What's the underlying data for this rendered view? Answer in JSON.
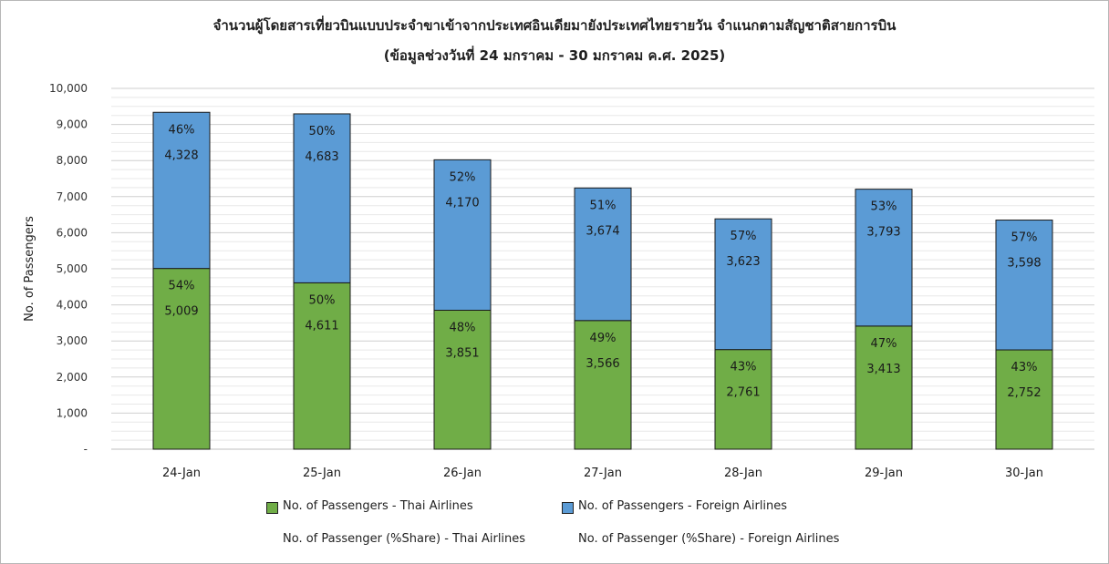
{
  "title_line1": "จำนวนผู้โดยสารเที่ยวบินแบบประจำขาเข้าจากประเทศอินเดียมายังประเทศไทยรายวัน  จำแนกตามสัญชาติสายการบิน",
  "title_line2": "(ข้อมูลช่วงวันที่ 24 มกราคม - 30 มกราคม ค.ศ. 2025)",
  "legend": {
    "thai": "No. of Passengers - Thai Airlines",
    "foreign": "No. of Passengers - Foreign Airlines",
    "thai_share": "No. of Passenger (%Share) - Thai Airlines",
    "foreign_share": "No. of Passenger (%Share) - Foreign Airlines"
  },
  "chart_data": {
    "type": "bar",
    "stacked": true,
    "title": "จำนวนผู้โดยสารเที่ยวบินแบบประจำขาเข้าจากประเทศอินเดียมายังประเทศไทยรายวัน  จำแนกตามสัญชาติสายการบิน",
    "subtitle": "(ข้อมูลช่วงวันที่ 24 มกราคม - 30 มกราคม ค.ศ. 2025)",
    "xlabel": "",
    "ylabel": "No. of Passengers",
    "ylim": [
      0,
      10000
    ],
    "yticks": [
      0,
      1000,
      2000,
      3000,
      4000,
      5000,
      6000,
      7000,
      8000,
      9000,
      10000
    ],
    "ytick_labels": [
      "-",
      "1,000",
      "2,000",
      "3,000",
      "4,000",
      "5,000",
      "6,000",
      "7,000",
      "8,000",
      "9,000",
      "10,000"
    ],
    "grid": true,
    "legend_position": "bottom",
    "categories": [
      "24-Jan",
      "25-Jan",
      "26-Jan",
      "27-Jan",
      "28-Jan",
      "29-Jan",
      "30-Jan"
    ],
    "series": [
      {
        "name": "No. of Passengers - Thai Airlines",
        "color": "#70ad47",
        "values": [
          5009,
          4611,
          3851,
          3566,
          2761,
          3413,
          2752
        ],
        "value_labels": [
          "5,009",
          "4,611",
          "3,851",
          "3,566",
          "2,761",
          "3,413",
          "2,752"
        ],
        "share_labels": [
          "54%",
          "50%",
          "48%",
          "49%",
          "43%",
          "47%",
          "43%"
        ]
      },
      {
        "name": "No. of Passengers - Foreign Airlines",
        "color": "#5b9bd5",
        "values": [
          4328,
          4683,
          4170,
          3674,
          3623,
          3793,
          3598
        ],
        "value_labels": [
          "4,328",
          "4,683",
          "4,170",
          "3,674",
          "3,623",
          "3,793",
          "3,598"
        ],
        "share_labels": [
          "46%",
          "50%",
          "52%",
          "51%",
          "57%",
          "53%",
          "57%"
        ]
      }
    ]
  }
}
